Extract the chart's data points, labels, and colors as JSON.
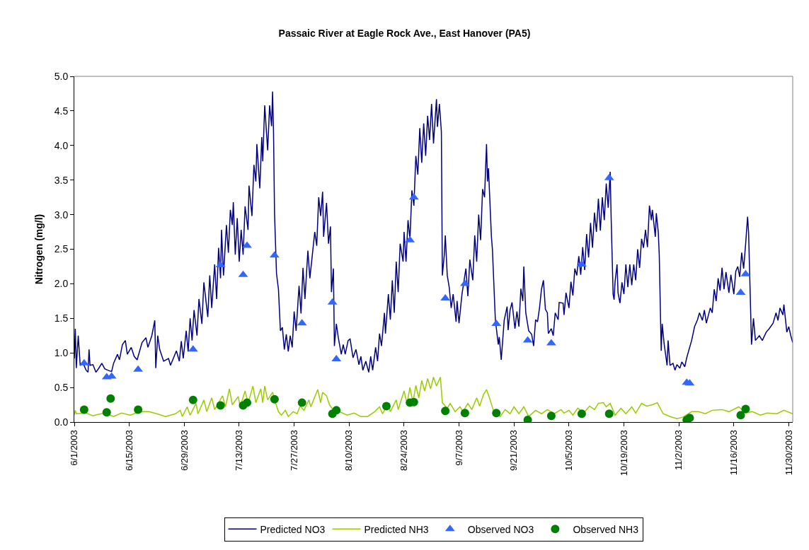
{
  "chart_data": {
    "type": "line",
    "title": "Passaic River at Eagle Rock Ave., East Hanover (PA5)",
    "ylabel": "Nitrogen (mg/l)",
    "xlim": [
      "2003-06-01",
      "2003-12-01"
    ],
    "xticks": [
      {
        "value": "2003-06-01",
        "label": "6/1/2003"
      },
      {
        "value": "2003-06-15",
        "label": "6/15/2003"
      },
      {
        "value": "2003-06-29",
        "label": "6/29/2003"
      },
      {
        "value": "2003-07-13",
        "label": "7/13/2003"
      },
      {
        "value": "2003-07-27",
        "label": "7/27/2003"
      },
      {
        "value": "2003-08-10",
        "label": "8/10/2003"
      },
      {
        "value": "2003-08-24",
        "label": "8/24/2003"
      },
      {
        "value": "2003-09-07",
        "label": "9/7/2003"
      },
      {
        "value": "2003-09-21",
        "label": "9/21/2003"
      },
      {
        "value": "2003-10-05",
        "label": "10/5/2003"
      },
      {
        "value": "2003-10-19",
        "label": "10/19/2003"
      },
      {
        "value": "2003-11-02",
        "label": "11/2/2003"
      },
      {
        "value": "2003-11-16",
        "label": "11/16/2003"
      },
      {
        "value": "2003-11-30",
        "label": "11/30/2003"
      }
    ],
    "ylim": [
      0,
      5
    ],
    "yticks": [
      {
        "value": 0,
        "label": "0.0"
      },
      {
        "value": 0.5,
        "label": "0.5"
      },
      {
        "value": 1,
        "label": "1.0"
      },
      {
        "value": 1.5,
        "label": "1.5"
      },
      {
        "value": 2,
        "label": "2.0"
      },
      {
        "value": 2.5,
        "label": "2.5"
      },
      {
        "value": 3,
        "label": "3.0"
      },
      {
        "value": 3.5,
        "label": "3.5"
      },
      {
        "value": 4,
        "label": "4.0"
      },
      {
        "value": 4.5,
        "label": "4.5"
      },
      {
        "value": 5,
        "label": "5.0"
      }
    ],
    "grid": false,
    "legend": "bottom",
    "series": [
      {
        "name": "Predicted NO3",
        "type": "line",
        "color": "#000080",
        "marker": "none",
        "line_style": "solid",
        "x": [
          "2003-06-01T00:00",
          "2003-06-01T06:00",
          "2003-06-01T12:00",
          "2003-06-02T00:00",
          "2003-06-02T12:00",
          "2003-06-03T06:00",
          "2003-06-04T00:00",
          "2003-06-04T12:00",
          "2003-06-04T18:00",
          "2003-06-05T00:00",
          "2003-06-05T18:00",
          "2003-06-06T12:00",
          "2003-06-07T06:00",
          "2003-06-08T00:00",
          "2003-06-08T18:00",
          "2003-06-09T12:00",
          "2003-06-10T12:00",
          "2003-06-11T00:00",
          "2003-06-12T00:00",
          "2003-06-12T12:00",
          "2003-06-13T06:00",
          "2003-06-14T00:00",
          "2003-06-14T12:00",
          "2003-06-15T12:00",
          "2003-06-16T06:00",
          "2003-06-17T00:00",
          "2003-06-18T06:00",
          "2003-06-19T06:00",
          "2003-06-19T18:00",
          "2003-06-20T18:00",
          "2003-06-21T12:00",
          "2003-06-21T18:00",
          "2003-06-22T06:00",
          "2003-06-22T18:00",
          "2003-06-23T18:00",
          "2003-06-25T00:00",
          "2003-06-25T12:00",
          "2003-06-27T00:00",
          "2003-06-27T18:00",
          "2003-06-28T06:00",
          "2003-06-28T18:00",
          "2003-06-29T12:00",
          "2003-06-30T00:00",
          "2003-06-30T12:00",
          "2003-07-01T00:00",
          "2003-07-01T12:00",
          "2003-07-02T06:00",
          "2003-07-02T18:00",
          "2003-07-03T12:00",
          "2003-07-04T00:00",
          "2003-07-05T00:00",
          "2003-07-05T12:00",
          "2003-07-06T00:00",
          "2003-07-06T18:00",
          "2003-07-07T06:00",
          "2003-07-07T18:00",
          "2003-07-08T06:00",
          "2003-07-08T12:00",
          "2003-07-09T00:00",
          "2003-07-09T18:00",
          "2003-07-10T06:00",
          "2003-07-10T18:00",
          "2003-07-11T06:00",
          "2003-07-11T12:00",
          "2003-07-12T00:00",
          "2003-07-12T12:00",
          "2003-07-13T00:00",
          "2003-07-13T12:00",
          "2003-07-14T00:00",
          "2003-07-14T12:00",
          "2003-07-15T06:00",
          "2003-07-15T12:00",
          "2003-07-16T06:00",
          "2003-07-16T18:00",
          "2003-07-17T06:00",
          "2003-07-17T12:00",
          "2003-07-18T06:00",
          "2003-07-18T18:00",
          "2003-07-19T00:00",
          "2003-07-19T12:00",
          "2003-07-20T06:00",
          "2003-07-20T18:00",
          "2003-07-21T06:00",
          "2003-07-21T12:00",
          "2003-07-21T18:00",
          "2003-07-22T00:00",
          "2003-07-22T12:00",
          "2003-07-23T00:00",
          "2003-07-23T12:00",
          "2003-07-24T00:00",
          "2003-07-24T12:00",
          "2003-07-25T00:00",
          "2003-07-25T12:00",
          "2003-07-26T00:00",
          "2003-07-26T12:00",
          "2003-07-27T00:00",
          "2003-07-27T12:00",
          "2003-07-28T06:00",
          "2003-07-28T18:00",
          "2003-07-29T06:00",
          "2003-07-29T18:00",
          "2003-07-30T12:00",
          "2003-07-31T00:00",
          "2003-08-01T06:00",
          "2003-08-01T18:00",
          "2003-08-02T06:00",
          "2003-08-02T18:00",
          "2003-08-03T06:00",
          "2003-08-03T12:00",
          "2003-08-04T06:00",
          "2003-08-04T18:00",
          "2003-08-05T06:00",
          "2003-08-05T12:00",
          "2003-08-06T00:00",
          "2003-08-06T06:00",
          "2003-08-06T18:00",
          "2003-08-07T06:00",
          "2003-08-08T00:00",
          "2003-08-08T12:00",
          "2003-08-09T00:00",
          "2003-08-09T18:00",
          "2003-08-10T06:00",
          "2003-08-11T00:00",
          "2003-08-11T18:00",
          "2003-08-12T12:00",
          "2003-08-13T00:00",
          "2003-08-13T12:00",
          "2003-08-14T06:00",
          "2003-08-15T00:00",
          "2003-08-15T12:00",
          "2003-08-16T00:00",
          "2003-08-16T18:00",
          "2003-08-17T06:00",
          "2003-08-17T18:00",
          "2003-08-18T06:00",
          "2003-08-19T00:00",
          "2003-08-19T06:00",
          "2003-08-20T00:00",
          "2003-08-20T12:00",
          "2003-08-21T00:00",
          "2003-08-21T12:00",
          "2003-08-22T00:00",
          "2003-08-22T12:00",
          "2003-08-23T00:00",
          "2003-08-23T18:00",
          "2003-08-24T00:00",
          "2003-08-24T12:00",
          "2003-08-25T00:00",
          "2003-08-25T12:00",
          "2003-08-26T00:00",
          "2003-08-26T12:00",
          "2003-08-27T00:00",
          "2003-08-27T12:00",
          "2003-08-28T00:00",
          "2003-08-28T12:00",
          "2003-08-29T00:00",
          "2003-08-29T12:00",
          "2003-08-30T00:00",
          "2003-08-30T12:00",
          "2003-08-31T00:00",
          "2003-08-31T12:00",
          "2003-09-01T06:00",
          "2003-09-01T12:00",
          "2003-09-02T00:00",
          "2003-09-02T12:00",
          "2003-09-02T18:00",
          "2003-09-03T06:00",
          "2003-09-03T12:00",
          "2003-09-04T00:00",
          "2003-09-04T12:00",
          "2003-09-05T00:00",
          "2003-09-05T12:00",
          "2003-09-06T06:00",
          "2003-09-06T12:00",
          "2003-09-07T00:00",
          "2003-09-07T18:00",
          "2003-09-08T18:00",
          "2003-09-09T06:00",
          "2003-09-09T18:00",
          "2003-09-10T12:00",
          "2003-09-11T00:00",
          "2003-09-11T12:00",
          "2003-09-12T00:00",
          "2003-09-12T12:00",
          "2003-09-13T00:00",
          "2003-09-13T12:00",
          "2003-09-14T00:00",
          "2003-09-14T06:00",
          "2003-09-14T12:00",
          "2003-09-15T06:00",
          "2003-09-15T12:00",
          "2003-09-16T06:00",
          "2003-09-17T00:00",
          "2003-09-17T06:00",
          "2003-09-17T18:00",
          "2003-09-18T12:00",
          "2003-09-19T06:00",
          "2003-09-19T12:00",
          "2003-09-20T00:00",
          "2003-09-20T12:00",
          "2003-09-21T06:00",
          "2003-09-21T18:00",
          "2003-09-22T06:00",
          "2003-09-22T18:00",
          "2003-09-23T06:00",
          "2003-09-23T12:00",
          "2003-09-24T00:00",
          "2003-09-24T18:00",
          "2003-09-25T12:00",
          "2003-09-26T00:00",
          "2003-09-26T12:00",
          "2003-09-27T00:00",
          "2003-09-27T12:00",
          "2003-09-28T00:00",
          "2003-09-28T12:00",
          "2003-09-29T00:00",
          "2003-09-29T12:00",
          "2003-09-29T18:00",
          "2003-09-30T12:00",
          "2003-10-01T00:00",
          "2003-10-01T12:00",
          "2003-10-02T06:00",
          "2003-10-02T12:00",
          "2003-10-03T12:00",
          "2003-10-03T18:00",
          "2003-10-04T06:00",
          "2003-10-05T00:00",
          "2003-10-05T12:00",
          "2003-10-06T00:00",
          "2003-10-06T12:00",
          "2003-10-07T00:00",
          "2003-10-07T12:00",
          "2003-10-08T00:00",
          "2003-10-08T12:00",
          "2003-10-09T00:00",
          "2003-10-09T12:00",
          "2003-10-10T00:00",
          "2003-10-10T12:00",
          "2003-10-11T00:00",
          "2003-10-11T12:00",
          "2003-10-12T00:00",
          "2003-10-12T12:00",
          "2003-10-13T00:00",
          "2003-10-13T12:00",
          "2003-10-14T00:00",
          "2003-10-14T12:00",
          "2003-10-15T00:00",
          "2003-10-15T12:00",
          "2003-10-15T18:00",
          "2003-10-16T06:00",
          "2003-10-16T12:00",
          "2003-10-16T18:00",
          "2003-10-17T06:00",
          "2003-10-17T12:00",
          "2003-10-18T00:00",
          "2003-10-18T12:00",
          "2003-10-19T00:00",
          "2003-10-19T12:00",
          "2003-10-20T00:00",
          "2003-10-20T12:00",
          "2003-10-21T00:00",
          "2003-10-21T12:00",
          "2003-10-22T00:00",
          "2003-10-22T12:00",
          "2003-10-23T00:00",
          "2003-10-23T12:00",
          "2003-10-24T00:00",
          "2003-10-24T12:00",
          "2003-10-25T00:00",
          "2003-10-25T12:00",
          "2003-10-26T00:00",
          "2003-10-26T06:00",
          "2003-10-27T00:00",
          "2003-10-27T06:00",
          "2003-10-27T18:00",
          "2003-10-28T00:00",
          "2003-10-28T12:00",
          "2003-10-28T18:00",
          "2003-10-29T06:00",
          "2003-10-30T00:00",
          "2003-10-30T06:00",
          "2003-10-30T18:00",
          "2003-10-31T12:00",
          "2003-11-01T00:00",
          "2003-11-01T12:00",
          "2003-11-02T06:00",
          "2003-11-02T18:00",
          "2003-11-03T12:00",
          "2003-11-04T00:00",
          "2003-11-04T12:00",
          "2003-11-05T06:00",
          "2003-11-06T00:00",
          "2003-11-06T18:00",
          "2003-11-07T06:00",
          "2003-11-08T00:00",
          "2003-11-08T12:00",
          "2003-11-09T00:00",
          "2003-11-10T00:00",
          "2003-11-10T12:00",
          "2003-11-11T00:00",
          "2003-11-11T12:00",
          "2003-11-12T00:00",
          "2003-11-12T12:00",
          "2003-11-13T00:00",
          "2003-11-13T12:00",
          "2003-11-14T00:00",
          "2003-11-14T18:00",
          "2003-11-15T06:00",
          "2003-11-16T00:00",
          "2003-11-16T12:00",
          "2003-11-17T00:00",
          "2003-11-17T12:00",
          "2003-11-18T00:00",
          "2003-11-18T12:00",
          "2003-11-19T00:00",
          "2003-11-19T12:00",
          "2003-11-19T18:00",
          "2003-11-20T00:00",
          "2003-11-20T12:00",
          "2003-11-21T00:00",
          "2003-11-21T12:00",
          "2003-11-22T12:00",
          "2003-11-23T06:00",
          "2003-11-24T06:00",
          "2003-11-25T00:00",
          "2003-11-26T00:00",
          "2003-11-26T18:00",
          "2003-11-27T06:00",
          "2003-11-27T18:00",
          "2003-11-28T12:00",
          "2003-11-28T18:00",
          "2003-11-29T12:00",
          "2003-11-30T00:00",
          "2003-11-30T12:00",
          "2003-12-01T00:00"
        ],
        "values": [
          0.92,
          1.35,
          0.78,
          1.25,
          0.82,
          0.85,
          0.75,
          0.72,
          1.05,
          0.82,
          0.83,
          0.72,
          0.78,
          0.85,
          0.77,
          0.75,
          0.73,
          0.85,
          0.98,
          0.9,
          1.12,
          1.18,
          0.98,
          1.08,
          0.95,
          0.9,
          1.15,
          1.22,
          1.08,
          1.25,
          1.47,
          0.78,
          1.25,
          1.05,
          0.88,
          0.92,
          0.82,
          1.03,
          0.88,
          1.17,
          0.92,
          1.32,
          1.02,
          1.5,
          1.18,
          1.62,
          1.25,
          1.78,
          1.42,
          2.02,
          1.52,
          2.12,
          1.65,
          2.28,
          1.78,
          2.52,
          2.08,
          2.78,
          2.12,
          2.85,
          2.45,
          3.07,
          2.85,
          3.18,
          2.42,
          2.95,
          2.32,
          2.78,
          2.42,
          3.12,
          2.78,
          3.42,
          2.98,
          3.72,
          3.48,
          4.02,
          3.38,
          4.12,
          3.77,
          4.58,
          3.93,
          4.58,
          4.28,
          4.78,
          4.18,
          3.02,
          2.15,
          1.92,
          1.32,
          1.37,
          1.05,
          1.27,
          1.02,
          1.25,
          1.08,
          1.6,
          1.32,
          1.97,
          1.57,
          2.23,
          1.78,
          2.48,
          2.08,
          2.75,
          2.55,
          3.25,
          2.98,
          3.33,
          2.68,
          3.17,
          2.58,
          2.83,
          1.88,
          2.22,
          1.1,
          1.42,
          1.22,
          0.98,
          1.12,
          0.98,
          1.18,
          1.2,
          0.93,
          1.05,
          0.83,
          0.95,
          0.75,
          0.88,
          0.72,
          0.95,
          0.75,
          1.08,
          0.88,
          1.28,
          1.1,
          1.58,
          1.28,
          1.85,
          1.48,
          2.05,
          1.58,
          2.32,
          1.88,
          2.58,
          2.32,
          2.75,
          2.32,
          2.92,
          2.65,
          3.35,
          3.13,
          3.85,
          3.58,
          4.25,
          3.75,
          4.32,
          3.85,
          4.43,
          4.08,
          4.6,
          4.03,
          4.67,
          4.27,
          4.6,
          4.2,
          2.12,
          2.42,
          2.7,
          2.12,
          1.95,
          1.65,
          1.85,
          1.45,
          1.75,
          1.43,
          1.85,
          2.22,
          1.82,
          2.35,
          2.05,
          2.7,
          2.32,
          3.0,
          2.63,
          3.37,
          3.25,
          4.02,
          3.48,
          3.67,
          2.68,
          2.5,
          1.48,
          1.12,
          1.23,
          0.9,
          1.47,
          1.67,
          1.33,
          1.62,
          1.73,
          1.35,
          1.6,
          1.38,
          1.93,
          1.75,
          2.25,
          1.58,
          1.32,
          1.27,
          1.1,
          1.48,
          1.45,
          1.65,
          1.92,
          2.05,
          1.63,
          1.58,
          1.28,
          1.35,
          1.25,
          1.58,
          1.48,
          1.73,
          1.72,
          1.55,
          1.87,
          1.65,
          2.03,
          1.83,
          2.22,
          2.12,
          2.4,
          2.13,
          2.53,
          2.2,
          2.72,
          2.38,
          2.88,
          2.52,
          3.03,
          2.75,
          3.23,
          2.77,
          3.25,
          2.92,
          3.45,
          3.1,
          3.62,
          2.95,
          1.85,
          1.77,
          2.03,
          2.28,
          1.87,
          1.72,
          2.02,
          1.85,
          2.28,
          1.95,
          2.28,
          1.98,
          2.28,
          2.05,
          2.5,
          2.23,
          2.65,
          2.52,
          2.78,
          2.53,
          3.13,
          2.92,
          3.07,
          2.68,
          3.02,
          2.75,
          2.42,
          1.03,
          1.42,
          1.13,
          0.82,
          1.18,
          0.82,
          0.85,
          0.75,
          0.83,
          0.78,
          0.87,
          0.8,
          0.93,
          1.03,
          1.18,
          1.38,
          1.48,
          1.58,
          1.47,
          1.62,
          1.43,
          1.65,
          1.58,
          1.92,
          1.75,
          2.08,
          1.9,
          2.23,
          1.92,
          2.17,
          1.87,
          2.13,
          1.85,
          2.18,
          2.25,
          2.1,
          2.45,
          2.22,
          2.57,
          2.97,
          2.75,
          2.22,
          1.12,
          1.5,
          1.18,
          1.25,
          1.18,
          1.3,
          1.35,
          1.43,
          1.58,
          1.47,
          1.65,
          1.55,
          1.7,
          1.3,
          1.38,
          1.25,
          1.15
        ]
      },
      {
        "name": "Predicted NH3",
        "type": "line",
        "color": "#99cc00",
        "marker": "none",
        "line_style": "solid",
        "x": [
          "2003-06-01T00:00",
          "2003-06-01T06:00",
          "2003-06-01T12:00",
          "2003-06-04T00:00",
          "2003-06-05T18:00",
          "2003-06-07T00:00",
          "2003-06-08T18:00",
          "2003-06-11T00:00",
          "2003-06-13T00:00",
          "2003-06-15T06:00",
          "2003-06-17T18:00",
          "2003-06-20T00:00",
          "2003-06-22T00:00",
          "2003-06-24T06:00",
          "2003-06-26T18:00",
          "2003-06-28T00:00",
          "2003-06-28T12:00",
          "2003-06-29T18:00",
          "2003-06-30T12:00",
          "2003-07-02T00:00",
          "2003-07-02T12:00",
          "2003-07-04T00:00",
          "2003-07-04T18:00",
          "2003-07-06T00:00",
          "2003-07-06T18:00",
          "2003-07-08T18:00",
          "2003-07-09T12:00",
          "2003-07-10T12:00",
          "2003-07-11T06:00",
          "2003-07-12T18:00",
          "2003-07-13T06:00",
          "2003-07-14T12:00",
          "2003-07-15T06:00",
          "2003-07-16T12:00",
          "2003-07-17T06:00",
          "2003-07-18T12:00",
          "2003-07-19T00:00",
          "2003-07-19T12:00",
          "2003-07-20T06:00",
          "2003-07-21T12:00",
          "2003-07-22T06:00",
          "2003-07-23T00:00",
          "2003-07-23T18:00",
          "2003-07-24T18:00",
          "2003-07-25T12:00",
          "2003-07-26T18:00",
          "2003-07-27T18:00",
          "2003-07-28T12:00",
          "2003-07-29T12:00",
          "2003-07-30T18:00",
          "2003-07-31T06:00",
          "2003-08-02T00:00",
          "2003-08-02T18:00",
          "2003-08-03T06:00",
          "2003-08-04T06:00",
          "2003-08-05T00:00",
          "2003-08-06T00:00",
          "2003-08-07T12:00",
          "2003-08-09T12:00",
          "2003-08-11T06:00",
          "2003-08-13T00:00",
          "2003-08-14T18:00",
          "2003-08-16T12:00",
          "2003-08-17T18:00",
          "2003-08-18T12:00",
          "2003-08-20T00:00",
          "2003-08-20T12:00",
          "2003-08-22T00:00",
          "2003-08-22T12:00",
          "2003-08-24T00:00",
          "2003-08-24T18:00",
          "2003-08-25T12:00",
          "2003-08-26T06:00",
          "2003-08-27T00:00",
          "2003-08-27T18:00",
          "2003-08-28T12:00",
          "2003-08-29T06:00",
          "2003-08-30T00:00",
          "2003-08-30T18:00",
          "2003-08-31T12:00",
          "2003-09-01T06:00",
          "2003-09-02T06:00",
          "2003-09-02T18:00",
          "2003-09-04T00:00",
          "2003-09-04T18:00",
          "2003-09-06T00:00",
          "2003-09-07T06:00",
          "2003-09-08T00:00",
          "2003-09-09T06:00",
          "2003-09-10T06:00",
          "2003-09-11T12:00",
          "2003-09-12T06:00",
          "2003-09-13T06:00",
          "2003-09-14T00:00",
          "2003-09-14T18:00",
          "2003-09-15T18:00",
          "2003-09-17T12:00",
          "2003-09-18T18:00",
          "2003-09-20T00:00",
          "2003-09-21T00:00",
          "2003-09-22T06:00",
          "2003-09-23T12:00",
          "2003-09-24T18:00",
          "2003-09-26T12:00",
          "2003-09-28T00:00",
          "2003-09-29T12:00",
          "2003-10-01T06:00",
          "2003-10-03T00:00",
          "2003-10-03T18:00",
          "2003-10-05T00:00",
          "2003-10-06T00:00",
          "2003-10-07T06:00",
          "2003-10-08T18:00",
          "2003-10-10T06:00",
          "2003-10-11T12:00",
          "2003-10-12T12:00",
          "2003-10-13T18:00",
          "2003-10-14T12:00",
          "2003-10-15T12:00",
          "2003-10-16T18:00",
          "2003-10-18T06:00",
          "2003-10-19T12:00",
          "2003-10-21T00:00",
          "2003-10-22T00:00",
          "2003-10-23T12:00",
          "2003-10-24T18:00",
          "2003-10-26T06:00",
          "2003-10-27T12:00",
          "2003-10-29T00:00",
          "2003-10-30T18:00",
          "2003-11-01T12:00",
          "2003-11-03T00:00",
          "2003-11-05T06:00",
          "2003-11-07T00:00",
          "2003-11-08T18:00",
          "2003-11-10T12:00",
          "2003-11-13T00:00",
          "2003-11-14T18:00",
          "2003-11-17T06:00",
          "2003-11-19T00:00",
          "2003-11-20T18:00",
          "2003-11-22T18:00",
          "2003-11-24T12:00",
          "2003-11-27T00:00",
          "2003-11-28T18:00",
          "2003-12-01T00:00"
        ],
        "values": [
          0.1,
          0.17,
          0.12,
          0.13,
          0.09,
          0.11,
          0.13,
          0.08,
          0.13,
          0.1,
          0.15,
          0.15,
          0.12,
          0.08,
          0.12,
          0.17,
          0.08,
          0.22,
          0.1,
          0.27,
          0.12,
          0.32,
          0.15,
          0.35,
          0.18,
          0.38,
          0.22,
          0.48,
          0.25,
          0.37,
          0.22,
          0.45,
          0.27,
          0.52,
          0.28,
          0.48,
          0.28,
          0.52,
          0.32,
          0.43,
          0.28,
          0.15,
          0.1,
          0.17,
          0.08,
          0.15,
          0.12,
          0.23,
          0.17,
          0.32,
          0.22,
          0.47,
          0.28,
          0.43,
          0.38,
          0.25,
          0.17,
          0.15,
          0.1,
          0.13,
          0.08,
          0.08,
          0.15,
          0.22,
          0.12,
          0.27,
          0.15,
          0.32,
          0.18,
          0.45,
          0.27,
          0.5,
          0.28,
          0.53,
          0.35,
          0.6,
          0.45,
          0.63,
          0.48,
          0.65,
          0.52,
          0.65,
          0.28,
          0.2,
          0.27,
          0.15,
          0.22,
          0.15,
          0.27,
          0.18,
          0.35,
          0.23,
          0.4,
          0.47,
          0.35,
          0.17,
          0.08,
          0.18,
          0.12,
          0.22,
          0.12,
          0.22,
          0.08,
          0.17,
          0.12,
          0.18,
          0.12,
          0.18,
          0.13,
          0.17,
          0.1,
          0.2,
          0.13,
          0.23,
          0.18,
          0.27,
          0.28,
          0.22,
          0.27,
          0.1,
          0.2,
          0.12,
          0.22,
          0.13,
          0.27,
          0.23,
          0.25,
          0.28,
          0.12,
          0.08,
          0.05,
          0.07,
          0.15,
          0.15,
          0.12,
          0.17,
          0.18,
          0.15,
          0.22,
          0.13,
          0.15,
          0.1,
          0.13,
          0.12,
          0.17,
          0.12
        ]
      },
      {
        "name": "Observed NO3",
        "type": "scatter",
        "color": "#3366ff",
        "marker": "triangle",
        "x": [
          "2003-06-03T12:00",
          "2003-06-09T06:00",
          "2003-06-10T12:00",
          "2003-06-17T06:00",
          "2003-07-01T06:00",
          "2003-07-08T06:00",
          "2003-07-14T00:00",
          "2003-07-15T00:00",
          "2003-07-22T00:00",
          "2003-07-29T00:00",
          "2003-08-05T18:00",
          "2003-08-06T18:00",
          "2003-08-25T12:00",
          "2003-08-26T12:00",
          "2003-09-03T12:00",
          "2003-09-08T12:00",
          "2003-09-16T12:00",
          "2003-09-24T12:00",
          "2003-09-30T12:00",
          "2003-10-08T06:00",
          "2003-10-15T06:00",
          "2003-11-04T00:00",
          "2003-11-04T18:00",
          "2003-11-17T18:00",
          "2003-11-19T00:00"
        ],
        "values": [
          0.85,
          0.65,
          0.66,
          0.76,
          1.05,
          2.27,
          2.13,
          2.55,
          2.41,
          1.43,
          1.73,
          0.91,
          2.63,
          3.25,
          1.79,
          2.0,
          1.42,
          1.18,
          1.14,
          2.28,
          3.53,
          0.57,
          0.56,
          1.87,
          2.14
        ]
      },
      {
        "name": "Observed NH3",
        "type": "scatter",
        "color": "#008000",
        "marker": "circle",
        "x": [
          "2003-06-03T12:00",
          "2003-06-09T06:00",
          "2003-06-10T06:00",
          "2003-06-17T06:00",
          "2003-07-01T06:00",
          "2003-07-08T06:00",
          "2003-07-14T00:00",
          "2003-07-15T00:00",
          "2003-07-22T00:00",
          "2003-07-29T00:00",
          "2003-08-05T18:00",
          "2003-08-06T18:00",
          "2003-08-19T12:00",
          "2003-08-25T12:00",
          "2003-08-26T12:00",
          "2003-09-03T12:00",
          "2003-09-08T12:00",
          "2003-09-16T12:00",
          "2003-09-24T12:00",
          "2003-09-30T12:00",
          "2003-10-08T06:00",
          "2003-10-15T06:00",
          "2003-11-04T00:00",
          "2003-11-04T18:00",
          "2003-11-17T18:00",
          "2003-11-19T00:00"
        ],
        "values": [
          0.18,
          0.14,
          0.34,
          0.18,
          0.32,
          0.24,
          0.24,
          0.28,
          0.33,
          0.28,
          0.12,
          0.17,
          0.23,
          0.28,
          0.29,
          0.16,
          0.13,
          0.13,
          0.03,
          0.09,
          0.12,
          0.12,
          0.03,
          0.06,
          0.1,
          0.19
        ]
      }
    ]
  }
}
